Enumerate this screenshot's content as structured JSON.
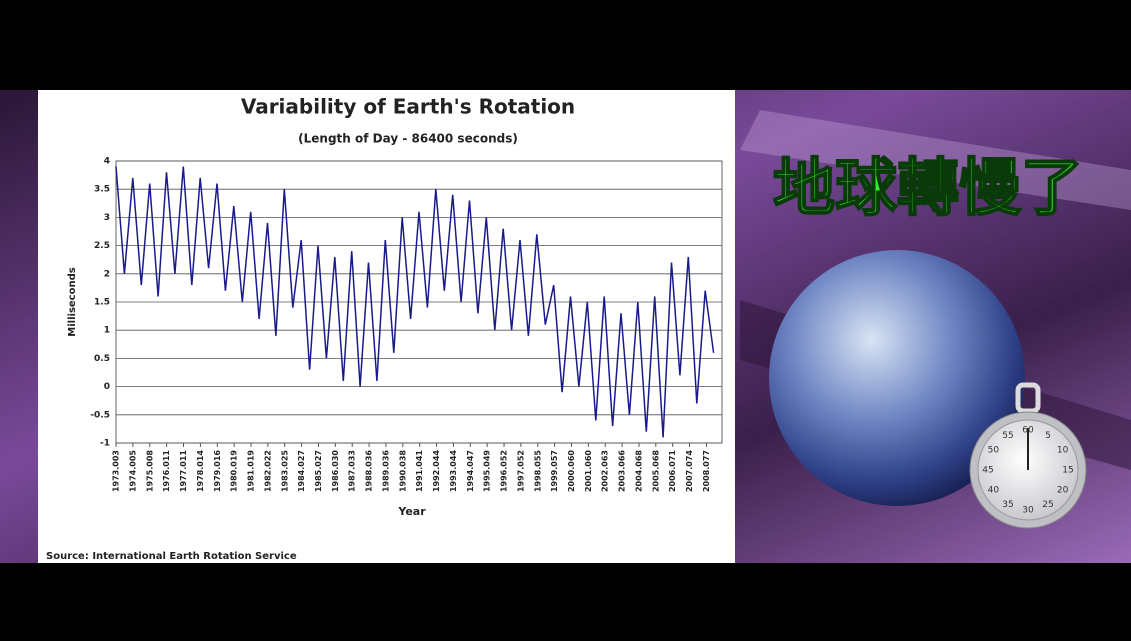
{
  "chart_data": {
    "type": "line",
    "title": "Variability of Earth's Rotation",
    "subtitle": "(Length of Day - 86400 seconds)",
    "y_label": "Milliseconds",
    "x_label": "Year",
    "source": "Source: International Earth Rotation Service",
    "color": "#1a1a8c",
    "x": [
      1973.0,
      1973.5,
      1974.0,
      1974.5,
      1975.0,
      1975.5,
      1976.0,
      1976.5,
      1977.0,
      1977.5,
      1978.0,
      1978.5,
      1979.0,
      1979.5,
      1980.0,
      1980.5,
      1981.0,
      1981.5,
      1982.0,
      1982.5,
      1983.0,
      1983.5,
      1984.0,
      1984.5,
      1985.0,
      1985.5,
      1986.0,
      1986.5,
      1987.0,
      1987.5,
      1988.0,
      1988.5,
      1989.0,
      1989.5,
      1990.0,
      1990.5,
      1991.0,
      1991.5,
      1992.0,
      1992.5,
      1993.0,
      1993.5,
      1994.0,
      1994.5,
      1995.0,
      1995.5,
      1996.0,
      1996.5,
      1997.0,
      1997.5,
      1998.0,
      1998.5,
      1999.0,
      1999.5,
      2000.0,
      2000.5,
      2001.0,
      2001.5,
      2002.0,
      2002.5,
      2003.0,
      2003.5,
      2004.0,
      2004.5,
      2005.0,
      2005.5,
      2006.0,
      2006.5,
      2007.0,
      2007.5,
      2008.0,
      2008.5
    ],
    "values": [
      3.9,
      2.0,
      3.7,
      1.8,
      3.6,
      1.6,
      3.8,
      2.0,
      3.9,
      1.8,
      3.7,
      2.1,
      3.6,
      1.7,
      3.2,
      1.5,
      3.1,
      1.2,
      2.9,
      0.9,
      3.5,
      1.4,
      2.6,
      0.3,
      2.5,
      0.5,
      2.3,
      0.1,
      2.4,
      0.0,
      2.2,
      0.1,
      2.6,
      0.6,
      3.0,
      1.2,
      3.1,
      1.4,
      3.5,
      1.7,
      3.4,
      1.5,
      3.3,
      1.3,
      3.0,
      1.0,
      2.8,
      1.0,
      2.6,
      0.9,
      2.7,
      1.1,
      1.8,
      -0.1,
      1.6,
      0.0,
      1.5,
      -0.6,
      1.6,
      -0.7,
      1.3,
      -0.5,
      1.5,
      -0.8,
      1.6,
      -0.9,
      2.2,
      0.2,
      2.3,
      -0.3,
      1.7,
      0.6
    ],
    "xlim": [
      1973.0,
      2009.0
    ],
    "xticks": [
      1973.003,
      1974.005,
      1975.008,
      1976.011,
      1977.011,
      1978.014,
      1979.016,
      1980.019,
      1981.019,
      1982.022,
      1983.025,
      1984.027,
      1985.027,
      {
        "value": 1986.03,
        "label": "1986.030"
      },
      1987.033,
      1988.036,
      1989.036,
      1990.038,
      1991.041,
      1992.044,
      1993.044,
      1994.047,
      1995.049,
      1996.052,
      1997.052,
      1998.055,
      1999.057,
      {
        "value": 2000.06,
        "label": "2000.060"
      },
      {
        "value": 2001.06,
        "label": "2001.060"
      },
      2002.063,
      2003.066,
      2004.068,
      2005.068,
      2006.071,
      2007.074,
      2008.077
    ],
    "ylim": [
      -1,
      4
    ],
    "yticks": [
      -1,
      -0.5,
      0,
      0.5,
      1,
      1.5,
      2,
      2.5,
      3,
      3.5,
      4
    ],
    "grid": true
  },
  "overlay": {
    "caption": "地球轉慢了",
    "stopwatch_dial": [
      "60",
      "5",
      "10",
      "15",
      "20",
      "25",
      "30",
      "35",
      "40",
      "45",
      "50",
      "55"
    ]
  }
}
